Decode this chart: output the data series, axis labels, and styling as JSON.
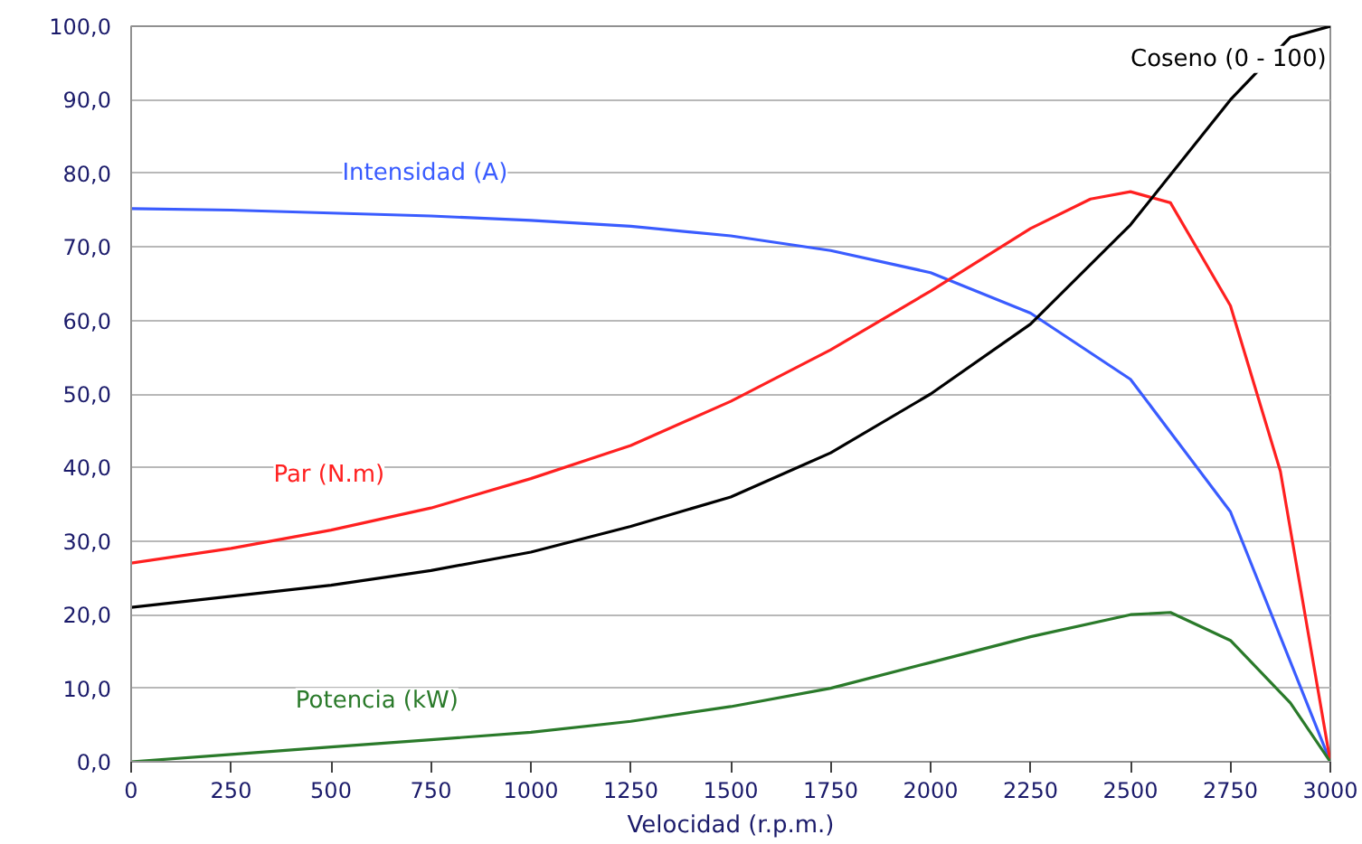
{
  "chart_data": {
    "type": "line",
    "xlabel": "Velocidad (r.p.m.)",
    "xlim": [
      0,
      3000
    ],
    "xticks": [
      0,
      250,
      500,
      750,
      1000,
      1250,
      1500,
      1750,
      2000,
      2250,
      2500,
      2750,
      3000
    ],
    "ylim": [
      0,
      100
    ],
    "yticks": [
      {
        "value": 0,
        "label": "0,0"
      },
      {
        "value": 10,
        "label": "10,0"
      },
      {
        "value": 20,
        "label": "20,0"
      },
      {
        "value": 30,
        "label": "30,0"
      },
      {
        "value": 40,
        "label": "40,0"
      },
      {
        "value": 50,
        "label": "50,0"
      },
      {
        "value": 60,
        "label": "60,0"
      },
      {
        "value": 70,
        "label": "70,0"
      },
      {
        "value": 80,
        "label": "80,0"
      },
      {
        "value": 90,
        "label": "90,0"
      },
      {
        "value": 100,
        "label": "100,0"
      }
    ],
    "grid": "y",
    "legend": false,
    "series": [
      {
        "name": "Intensidad (A)",
        "color": "#3a5cff",
        "x": [
          0,
          250,
          500,
          750,
          1000,
          1250,
          1500,
          1750,
          2000,
          2250,
          2500,
          2750,
          3000
        ],
        "values": [
          75.2,
          75,
          74.6,
          74.2,
          73.6,
          72.8,
          71.5,
          69.5,
          66.5,
          61,
          52,
          34,
          0
        ]
      },
      {
        "name": "Par (N.m)",
        "color": "#ff2020",
        "x": [
          0,
          250,
          500,
          750,
          1000,
          1250,
          1500,
          1750,
          2000,
          2250,
          2400,
          2500,
          2600,
          2750,
          2875,
          3000
        ],
        "values": [
          27,
          29,
          31.5,
          34.5,
          38.5,
          43,
          49,
          56,
          64,
          72.5,
          76.5,
          77.5,
          76,
          62,
          39.5,
          0
        ]
      },
      {
        "name": "Coseno (0 - 100)",
        "color": "#000000",
        "x": [
          0,
          250,
          500,
          750,
          1000,
          1250,
          1500,
          1750,
          2000,
          2250,
          2500,
          2750,
          2900,
          3000
        ],
        "values": [
          21,
          22.5,
          24,
          26,
          28.5,
          32,
          36,
          42,
          50,
          59.5,
          73,
          90,
          98.5,
          100
        ]
      },
      {
        "name": "Potencia (kW)",
        "color": "#2a7a2a",
        "x": [
          0,
          250,
          500,
          750,
          1000,
          1250,
          1500,
          1750,
          2000,
          2250,
          2500,
          2600,
          2750,
          2900,
          3000
        ],
        "values": [
          0,
          1,
          2,
          3,
          4,
          5.5,
          7.5,
          10,
          13.5,
          17,
          20,
          20.3,
          16.5,
          8,
          0
        ]
      }
    ]
  }
}
